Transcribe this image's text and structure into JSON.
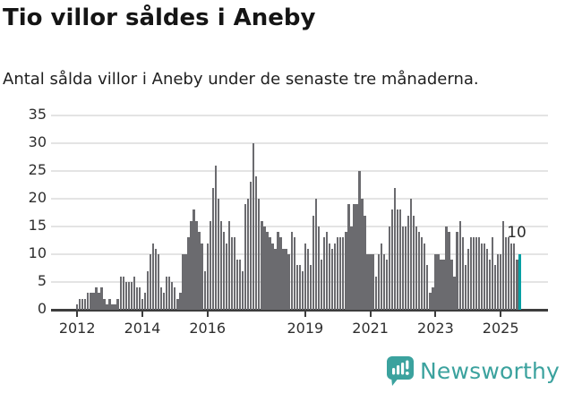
{
  "header": {
    "title": "Tio villor såldes i Aneby",
    "subtitle": "Antal sålda villor i Aneby under de senaste tre månaderna."
  },
  "chart_data": {
    "type": "bar",
    "title": "Tio villor såldes i Aneby",
    "subtitle": "Antal sålda villor i Aneby under de senaste tre månaderna.",
    "x_unit": "month",
    "x_start": "2012-01",
    "x_end": "2025-08",
    "ylim": [
      0,
      35
    ],
    "yticks": [
      0,
      5,
      10,
      15,
      20,
      25,
      30,
      35
    ],
    "grid": true,
    "legend": "none",
    "xticks": [
      {
        "label": "2012",
        "month_index": 0
      },
      {
        "label": "2014",
        "month_index": 24
      },
      {
        "label": "2016",
        "month_index": 48
      },
      {
        "label": "2019",
        "month_index": 84
      },
      {
        "label": "2021",
        "month_index": 108
      },
      {
        "label": "2023",
        "month_index": 132
      },
      {
        "label": "2025",
        "month_index": 156
      }
    ],
    "series": [
      {
        "name": "Antal sålda villor i Aneby (rullande tre månader)",
        "values": [
          1,
          2,
          2,
          2,
          3,
          3,
          3,
          4,
          3,
          4,
          2,
          1,
          2,
          1,
          1,
          2,
          6,
          6,
          5,
          5,
          5,
          6,
          4,
          4,
          2,
          3,
          7,
          10,
          12,
          11,
          10,
          4,
          3,
          6,
          6,
          5,
          4,
          2,
          3,
          10,
          10,
          13,
          16,
          18,
          16,
          14,
          12,
          7,
          12,
          16,
          22,
          26,
          20,
          16,
          14,
          12,
          16,
          13,
          13,
          9,
          9,
          7,
          19,
          20,
          23,
          30,
          24,
          20,
          16,
          15,
          14,
          13,
          12,
          11,
          14,
          13,
          11,
          11,
          10,
          14,
          13,
          8,
          8,
          7,
          12,
          11,
          8,
          17,
          20,
          15,
          9,
          13,
          14,
          12,
          11,
          12,
          13,
          13,
          13,
          14,
          19,
          15,
          19,
          19,
          25,
          20,
          17,
          10,
          10,
          10,
          6,
          10,
          12,
          10,
          9,
          15,
          18,
          22,
          18,
          18,
          15,
          15,
          17,
          20,
          17,
          15,
          14,
          13,
          12,
          8,
          3,
          4,
          10,
          10,
          9,
          9,
          15,
          14,
          9,
          6,
          14,
          16,
          13,
          8,
          11,
          13,
          13,
          13,
          13,
          12,
          12,
          11,
          9,
          13,
          8,
          10,
          10,
          16,
          13,
          13,
          12,
          12,
          9,
          10
        ]
      }
    ],
    "highlight_last": {
      "month": "2025-08",
      "value": 10,
      "label": "10"
    },
    "colors": {
      "bar": "#6b6b6f",
      "highlight": "#00a0a4",
      "grid": "#e4e4e4",
      "axis": "#3d3d3d",
      "tick_label": "#2e2e2e",
      "annotation": "#2b2b2b"
    }
  },
  "footer": {
    "brand": "Newsworthy",
    "brand_color": "#3ba29e",
    "icon": "newsworthy-speech-bubble-chart-icon"
  }
}
